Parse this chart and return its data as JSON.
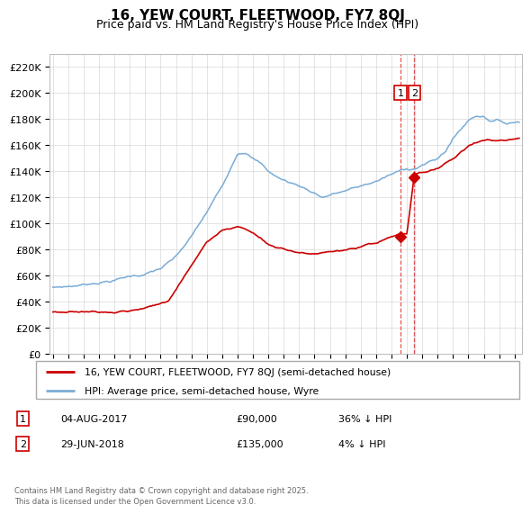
{
  "title": "16, YEW COURT, FLEETWOOD, FY7 8QJ",
  "subtitle": "Price paid vs. HM Land Registry's House Price Index (HPI)",
  "legend_line1": "16, YEW COURT, FLEETWOOD, FY7 8QJ (semi-detached house)",
  "legend_line2": "HPI: Average price, semi-detached house, Wyre",
  "annotation1": {
    "label": "1",
    "date": "04-AUG-2017",
    "price": 90000,
    "note": "36% ↓ HPI",
    "x_year": 2017.59
  },
  "annotation2": {
    "label": "2",
    "date": "29-JUN-2018",
    "price": 135000,
    "note": "4% ↓ HPI",
    "x_year": 2018.49
  },
  "footer": "Contains HM Land Registry data © Crown copyright and database right 2025.\nThis data is licensed under the Open Government Licence v3.0.",
  "sale_color": "#cc0000",
  "hpi_color": "#7aacd6",
  "vline1_color": "#cc0000",
  "vline2_color": "#aaccee",
  "ylim": [
    0,
    230000
  ],
  "yticks": [
    0,
    20000,
    40000,
    60000,
    80000,
    100000,
    120000,
    140000,
    160000,
    180000,
    200000,
    220000
  ],
  "ytick_labels": [
    "£0",
    "£20K",
    "£40K",
    "£60K",
    "£80K",
    "£100K",
    "£120K",
    "£140K",
    "£160K",
    "£180K",
    "£200K",
    "£220K"
  ],
  "xlim_start": 1994.8,
  "xlim_end": 2025.5,
  "xticks": [
    1995,
    1996,
    1997,
    1998,
    1999,
    2000,
    2001,
    2002,
    2003,
    2004,
    2005,
    2006,
    2007,
    2008,
    2009,
    2010,
    2011,
    2012,
    2013,
    2014,
    2015,
    2016,
    2017,
    2018,
    2019,
    2020,
    2021,
    2022,
    2023,
    2024,
    2025
  ]
}
